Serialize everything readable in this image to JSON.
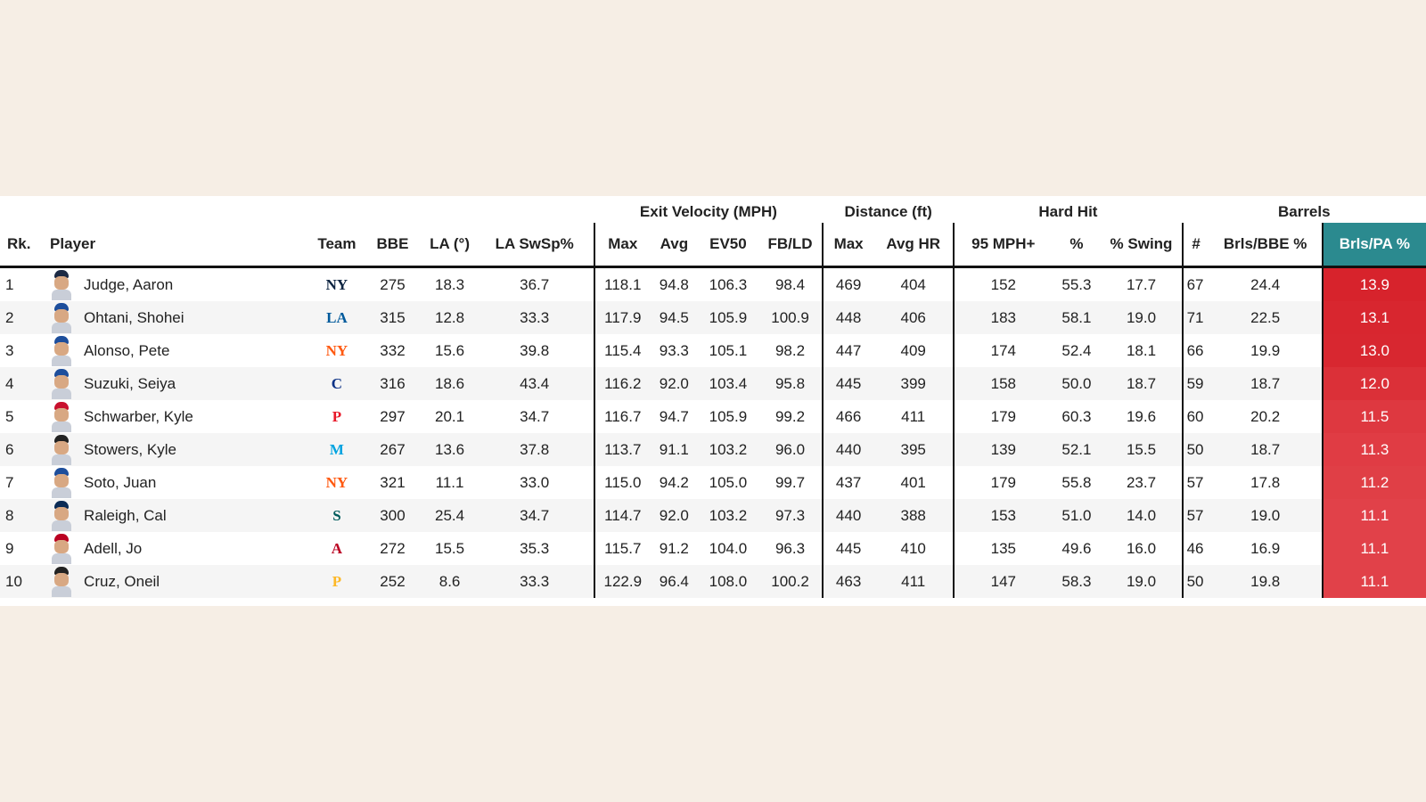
{
  "groups": {
    "exit_velocity": "Exit Velocity (MPH)",
    "distance": "Distance (ft)",
    "hard_hit": "Hard Hit",
    "barrels": "Barrels"
  },
  "headers": {
    "rk": "Rk.",
    "player": "Player",
    "team": "Team",
    "bbe": "BBE",
    "la": "LA (°)",
    "la_swsp": "LA SwSp%",
    "ev_max": "Max",
    "ev_avg": "Avg",
    "ev50": "EV50",
    "fbld": "FB/LD",
    "dist_max": "Max",
    "dist_avghr": "Avg HR",
    "hh_95": "95 MPH+",
    "hh_pct": "%",
    "hh_swing": "% Swing",
    "brl_num": "#",
    "brl_bbe": "Brls/BBE %",
    "brl_pa": "Brls/PA %"
  },
  "colors": {
    "accent_header": "#2b8a8f",
    "heat_high": "#d6222e",
    "heat_low": "#e5484f"
  },
  "rows": [
    {
      "rk": "1",
      "player": "Judge, Aaron",
      "team": "NY",
      "team_icon": "yankees-logo-icon",
      "team_color": "#0c2340",
      "cap": "#1c2a44",
      "bbe": "275",
      "la": "18.3",
      "la_swsp": "36.7",
      "ev_max": "118.1",
      "ev_avg": "94.8",
      "ev50": "106.3",
      "fbld": "98.4",
      "dist_max": "469",
      "dist_avghr": "404",
      "hh_95": "152",
      "hh_pct": "55.3",
      "hh_swing": "17.7",
      "brl_num": "67",
      "brl_bbe": "24.4",
      "brl_pa": "13.9",
      "heat": "#d7232c"
    },
    {
      "rk": "2",
      "player": "Ohtani, Shohei",
      "team": "LA",
      "team_icon": "dodgers-logo-icon",
      "team_color": "#005a9c",
      "cap": "#1d4e9c",
      "bbe": "315",
      "la": "12.8",
      "la_swsp": "33.3",
      "ev_max": "117.9",
      "ev_avg": "94.5",
      "ev50": "105.9",
      "fbld": "100.9",
      "dist_max": "448",
      "dist_avghr": "406",
      "hh_95": "183",
      "hh_pct": "58.1",
      "hh_swing": "19.0",
      "brl_num": "71",
      "brl_bbe": "22.5",
      "brl_pa": "13.1",
      "heat": "#d8262f"
    },
    {
      "rk": "3",
      "player": "Alonso, Pete",
      "team": "NY",
      "team_icon": "mets-logo-icon",
      "team_color": "#ff5910",
      "cap": "#1d4e9c",
      "bbe": "332",
      "la": "15.6",
      "la_swsp": "39.8",
      "ev_max": "115.4",
      "ev_avg": "93.3",
      "ev50": "105.1",
      "fbld": "98.2",
      "dist_max": "447",
      "dist_avghr": "409",
      "hh_95": "174",
      "hh_pct": "52.4",
      "hh_swing": "18.1",
      "brl_num": "66",
      "brl_bbe": "19.9",
      "brl_pa": "13.0",
      "heat": "#d82730"
    },
    {
      "rk": "4",
      "player": "Suzuki, Seiya",
      "team": "C",
      "team_icon": "cubs-logo-icon",
      "team_color": "#0e3386",
      "cap": "#1d4e9c",
      "bbe": "316",
      "la": "18.6",
      "la_swsp": "43.4",
      "ev_max": "116.2",
      "ev_avg": "92.0",
      "ev50": "103.4",
      "fbld": "95.8",
      "dist_max": "445",
      "dist_avghr": "399",
      "hh_95": "158",
      "hh_pct": "50.0",
      "hh_swing": "18.7",
      "brl_num": "59",
      "brl_bbe": "18.7",
      "brl_pa": "12.0",
      "heat": "#db3038"
    },
    {
      "rk": "5",
      "player": "Schwarber, Kyle",
      "team": "P",
      "team_icon": "phillies-logo-icon",
      "team_color": "#e81828",
      "cap": "#c8102e",
      "bbe": "297",
      "la": "20.1",
      "la_swsp": "34.7",
      "ev_max": "116.7",
      "ev_avg": "94.7",
      "ev50": "105.9",
      "fbld": "99.2",
      "dist_max": "466",
      "dist_avghr": "411",
      "hh_95": "179",
      "hh_pct": "60.3",
      "hh_swing": "19.6",
      "brl_num": "60",
      "brl_bbe": "20.2",
      "brl_pa": "11.5",
      "heat": "#de3840"
    },
    {
      "rk": "6",
      "player": "Stowers, Kyle",
      "team": "M",
      "team_icon": "marlins-logo-icon",
      "team_color": "#00a3e0",
      "cap": "#222222",
      "bbe": "267",
      "la": "13.6",
      "la_swsp": "37.8",
      "ev_max": "113.7",
      "ev_avg": "91.1",
      "ev50": "103.2",
      "fbld": "96.0",
      "dist_max": "440",
      "dist_avghr": "395",
      "hh_95": "139",
      "hh_pct": "52.1",
      "hh_swing": "15.5",
      "brl_num": "50",
      "brl_bbe": "18.7",
      "brl_pa": "11.3",
      "heat": "#e03c44"
    },
    {
      "rk": "7",
      "player": "Soto, Juan",
      "team": "NY",
      "team_icon": "mets-logo-icon",
      "team_color": "#ff5910",
      "cap": "#1d4e9c",
      "bbe": "321",
      "la": "11.1",
      "la_swsp": "33.0",
      "ev_max": "115.0",
      "ev_avg": "94.2",
      "ev50": "105.0",
      "fbld": "99.7",
      "dist_max": "437",
      "dist_avghr": "401",
      "hh_95": "179",
      "hh_pct": "55.8",
      "hh_swing": "23.7",
      "brl_num": "57",
      "brl_bbe": "17.8",
      "brl_pa": "11.2",
      "heat": "#e03f46"
    },
    {
      "rk": "8",
      "player": "Raleigh, Cal",
      "team": "S",
      "team_icon": "mariners-logo-icon",
      "team_color": "#005c5c",
      "cap": "#0c2c56",
      "bbe": "300",
      "la": "25.4",
      "la_swsp": "34.7",
      "ev_max": "114.7",
      "ev_avg": "92.0",
      "ev50": "103.2",
      "fbld": "97.3",
      "dist_max": "440",
      "dist_avghr": "388",
      "hh_95": "153",
      "hh_pct": "51.0",
      "hh_swing": "14.0",
      "brl_num": "57",
      "brl_bbe": "19.0",
      "brl_pa": "11.1",
      "heat": "#e14149"
    },
    {
      "rk": "9",
      "player": "Adell, Jo",
      "team": "A",
      "team_icon": "angels-logo-icon",
      "team_color": "#ba0021",
      "cap": "#ba0021",
      "bbe": "272",
      "la": "15.5",
      "la_swsp": "35.3",
      "ev_max": "115.7",
      "ev_avg": "91.2",
      "ev50": "104.0",
      "fbld": "96.3",
      "dist_max": "445",
      "dist_avghr": "410",
      "hh_95": "135",
      "hh_pct": "49.6",
      "hh_swing": "16.0",
      "brl_num": "46",
      "brl_bbe": "16.9",
      "brl_pa": "11.1",
      "heat": "#e14149"
    },
    {
      "rk": "10",
      "player": "Cruz, Oneil",
      "team": "P",
      "team_icon": "pirates-logo-icon",
      "team_color": "#fdb827",
      "cap": "#222222",
      "bbe": "252",
      "la": "8.6",
      "la_swsp": "33.3",
      "ev_max": "122.9",
      "ev_avg": "96.4",
      "ev50": "108.0",
      "fbld": "100.2",
      "dist_max": "463",
      "dist_avghr": "411",
      "hh_95": "147",
      "hh_pct": "58.3",
      "hh_swing": "19.0",
      "brl_num": "50",
      "brl_bbe": "19.8",
      "brl_pa": "11.1",
      "heat": "#e14149"
    }
  ]
}
